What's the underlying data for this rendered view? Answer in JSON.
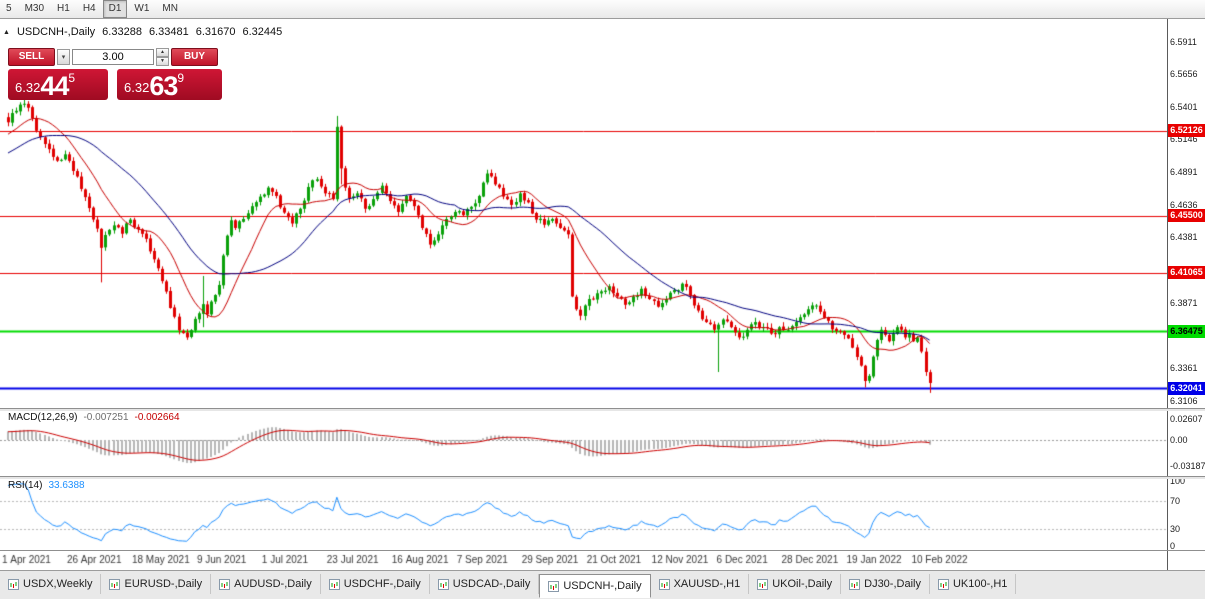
{
  "toolbar": {
    "buttons": [
      "5",
      "M30",
      "H1",
      "H4",
      "D1",
      "W1",
      "MN"
    ],
    "active": "D1"
  },
  "chart_header": {
    "collapse_icon": "▲",
    "title": "USDCNH-,Daily",
    "open": "6.33288",
    "high": "6.33481",
    "low": "6.31670",
    "close": "6.32445"
  },
  "icons": {
    "dropdown": "▾",
    "spin_up": "▲",
    "spin_down": "▼"
  },
  "trade_panel": {
    "sell": "SELL",
    "buy": "BUY",
    "lots": "3.00",
    "bid": {
      "prefix": "6.32",
      "pips": "44",
      "pipette": "5"
    },
    "ask": {
      "prefix": "6.32",
      "pips": "63",
      "pipette": "9"
    },
    "tile_top": "#cf1635",
    "tile_bottom": "#9f0b22",
    "btn_top": "#e04b59",
    "btn_bottom": "#c01228"
  },
  "chart_data": {
    "type": "candlestick",
    "symbol": "USDCNH-",
    "timeframe": "Daily",
    "current": {
      "open": 6.33288,
      "high": 6.33481,
      "low": 6.3167,
      "close": 6.32445
    },
    "price_axis": {
      "top": 6.6079,
      "bottom": 6.3049,
      "ticks": [
        6.5911,
        6.5656,
        6.5401,
        6.5146,
        6.4891,
        6.4636,
        6.4381,
        6.4126,
        6.3871,
        6.3616,
        6.3361,
        6.3106
      ]
    },
    "hlines": [
      {
        "price": 6.52126,
        "label": "6.52126",
        "color": "#e80000",
        "width": 1
      },
      {
        "price": 6.455,
        "label": "6.45500",
        "color": "#e80000",
        "width": 1
      },
      {
        "price": 6.41065,
        "label": "6.41065",
        "color": "#e80000",
        "width": 1
      },
      {
        "price": 6.36475,
        "label": "6.36475",
        "color": "#00dc00",
        "width": 2,
        "text": "#000000"
      },
      {
        "price": 6.32041,
        "label": "6.32041",
        "color": "#0000e8",
        "width": 2
      }
    ],
    "x_labels": [
      {
        "i": 0,
        "t": "1 Apr 2021"
      },
      {
        "i": 16,
        "t": "26 Apr 2021"
      },
      {
        "i": 32,
        "t": "18 May 2021"
      },
      {
        "i": 48,
        "t": "9 Jun 2021"
      },
      {
        "i": 64,
        "t": "1 Jul 2021"
      },
      {
        "i": 80,
        "t": "23 Jul 2021"
      },
      {
        "i": 96,
        "t": "16 Aug 2021"
      },
      {
        "i": 112,
        "t": "7 Sep 2021"
      },
      {
        "i": 128,
        "t": "29 Sep 2021"
      },
      {
        "i": 144,
        "t": "21 Oct 2021"
      },
      {
        "i": 160,
        "t": "12 Nov 2021"
      },
      {
        "i": 176,
        "t": "6 Dec 2021"
      },
      {
        "i": 192,
        "t": "28 Dec 2021"
      },
      {
        "i": 208,
        "t": "19 Jan 2022"
      },
      {
        "i": 224,
        "t": "10 Feb 2022"
      }
    ],
    "n": 228,
    "noise": 0.0028,
    "wick": 0.003,
    "candle_colors": {
      "up": "#0aa10a",
      "down": "#e00000"
    },
    "ma_lines": [
      {
        "period": 12,
        "color": "#c80000"
      },
      {
        "period": 30,
        "color": "#000080"
      }
    ],
    "keypoints": [
      [
        0,
        6.528
      ],
      [
        2,
        6.537
      ],
      [
        4,
        6.5425
      ],
      [
        6,
        6.531
      ],
      [
        8,
        6.5165
      ],
      [
        10,
        6.507
      ],
      [
        12,
        6.498
      ],
      [
        14,
        6.503
      ],
      [
        16,
        6.49
      ],
      [
        18,
        6.476
      ],
      [
        20,
        6.461
      ],
      [
        22,
        6.445
      ],
      [
        23,
        6.43
      ],
      [
        24,
        6.44
      ],
      [
        26,
        6.4475
      ],
      [
        28,
        6.441
      ],
      [
        30,
        6.452
      ],
      [
        32,
        6.4445
      ],
      [
        34,
        6.437
      ],
      [
        36,
        6.421
      ],
      [
        38,
        6.404
      ],
      [
        40,
        6.383
      ],
      [
        42,
        6.3655
      ],
      [
        44,
        6.36
      ],
      [
        46,
        6.3745
      ],
      [
        48,
        6.386
      ],
      [
        49,
        6.378
      ],
      [
        50,
        6.388
      ],
      [
        52,
        6.401
      ],
      [
        53,
        6.424
      ],
      [
        54,
        6.4395
      ],
      [
        55,
        6.4515
      ],
      [
        56,
        6.4455
      ],
      [
        58,
        6.4525
      ],
      [
        60,
        6.4625
      ],
      [
        62,
        6.47
      ],
      [
        64,
        6.477
      ],
      [
        66,
        6.4705
      ],
      [
        68,
        6.4575
      ],
      [
        70,
        6.449
      ],
      [
        72,
        6.4605
      ],
      [
        74,
        6.4775
      ],
      [
        76,
        6.4835
      ],
      [
        78,
        6.4725
      ],
      [
        80,
        6.468
      ],
      [
        81,
        6.5245
      ],
      [
        82,
        6.492
      ],
      [
        83,
        6.477
      ],
      [
        84,
        6.4685
      ],
      [
        86,
        6.4725
      ],
      [
        88,
        6.4605
      ],
      [
        90,
        6.468
      ],
      [
        92,
        6.4785
      ],
      [
        94,
        6.4665
      ],
      [
        96,
        6.458
      ],
      [
        98,
        6.4705
      ],
      [
        100,
        6.4625
      ],
      [
        102,
        6.4455
      ],
      [
        104,
        6.4325
      ],
      [
        106,
        6.4405
      ],
      [
        108,
        6.4525
      ],
      [
        110,
        6.458
      ],
      [
        112,
        6.4555
      ],
      [
        114,
        6.462
      ],
      [
        116,
        6.4705
      ],
      [
        118,
        6.488
      ],
      [
        120,
        6.4795
      ],
      [
        122,
        6.47
      ],
      [
        124,
        6.4635
      ],
      [
        126,
        6.4725
      ],
      [
        128,
        6.4655
      ],
      [
        130,
        6.452
      ],
      [
        132,
        6.448
      ],
      [
        134,
        6.4525
      ],
      [
        136,
        6.4455
      ],
      [
        138,
        6.4405
      ],
      [
        139,
        6.392
      ],
      [
        140,
        6.382
      ],
      [
        141,
        6.377
      ],
      [
        142,
        6.385
      ],
      [
        144,
        6.39
      ],
      [
        146,
        6.396
      ],
      [
        148,
        6.4
      ],
      [
        150,
        6.392
      ],
      [
        152,
        6.3855
      ],
      [
        154,
        6.392
      ],
      [
        156,
        6.398
      ],
      [
        158,
        6.39
      ],
      [
        160,
        6.384
      ],
      [
        162,
        6.39
      ],
      [
        164,
        6.397
      ],
      [
        166,
        6.402
      ],
      [
        168,
        6.393
      ],
      [
        170,
        6.381
      ],
      [
        172,
        6.372
      ],
      [
        174,
        6.366
      ],
      [
        175,
        6.37
      ],
      [
        176,
        6.374
      ],
      [
        178,
        6.368
      ],
      [
        180,
        6.36
      ],
      [
        182,
        6.366
      ],
      [
        184,
        6.372
      ],
      [
        186,
        6.368
      ],
      [
        188,
        6.363
      ],
      [
        190,
        6.368
      ],
      [
        192,
        6.366
      ],
      [
        194,
        6.372
      ],
      [
        196,
        6.378
      ],
      [
        198,
        6.385
      ],
      [
        200,
        6.38
      ],
      [
        202,
        6.373
      ],
      [
        204,
        6.365
      ],
      [
        206,
        6.362
      ],
      [
        208,
        6.352
      ],
      [
        210,
        6.338
      ],
      [
        211,
        6.326
      ],
      [
        212,
        6.33
      ],
      [
        213,
        6.345
      ],
      [
        214,
        6.358
      ],
      [
        215,
        6.366
      ],
      [
        216,
        6.362
      ],
      [
        217,
        6.357
      ],
      [
        218,
        6.363
      ],
      [
        219,
        6.368
      ],
      [
        220,
        6.366
      ],
      [
        221,
        6.36
      ],
      [
        222,
        6.363
      ],
      [
        223,
        6.357
      ],
      [
        224,
        6.36
      ],
      [
        225,
        6.349
      ],
      [
        226,
        6.333
      ],
      [
        227,
        6.32445
      ]
    ],
    "overrides": {
      "4": {
        "h": 6.5475
      },
      "23": {
        "l": 6.403
      },
      "48": {
        "h": 6.408,
        "l": 6.368
      },
      "81": {
        "h": 6.533
      },
      "82": {
        "l": 6.4795
      },
      "139": {
        "h": 6.442
      },
      "175": {
        "l": 6.333
      },
      "211": {
        "l": 6.321
      },
      "227": {
        "o": 6.33288,
        "h": 6.33481,
        "l": 6.3167,
        "c": 6.32445
      }
    },
    "macd": {
      "name": "MACD(12,26,9)",
      "fast": 12,
      "slow": 26,
      "signal": 9,
      "value_main": "-0.007251",
      "value_signal": "-0.002664",
      "hist_color": "#b6b6b6",
      "signal_color": "#cc0000",
      "axis": [
        {
          "v": 0.02607,
          "t": "0.02607"
        },
        {
          "v": 0,
          "t": "0.00"
        },
        {
          "v": -0.03187,
          "t": "-0.03187"
        }
      ]
    },
    "rsi": {
      "name": "RSI(14)",
      "period": 14,
      "value": "33.6388",
      "line_color": "#1E90FF",
      "levels": [
        100,
        70,
        30,
        0
      ],
      "level_lines": [
        70,
        30
      ]
    }
  },
  "tabs": {
    "items": [
      "USDX,Weekly",
      "EURUSD-,Daily",
      "AUDUSD-,Daily",
      "USDCHF-,Daily",
      "USDCAD-,Daily",
      "USDCNH-,Daily",
      "XAUUSD-,H1",
      "UKOil-,Daily",
      "DJ30-,Daily",
      "UK100-,H1"
    ],
    "active": "USDCNH-,Daily"
  }
}
